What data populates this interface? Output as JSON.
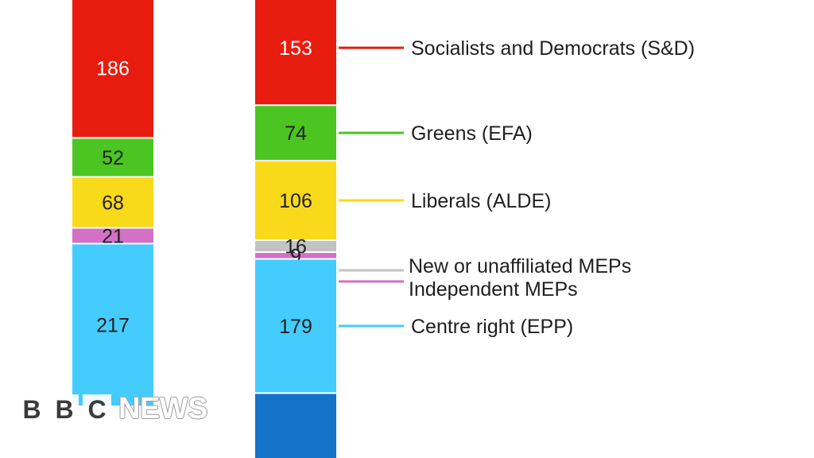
{
  "chart_data": {
    "type": "bar",
    "stacked": true,
    "legend_placement": "right",
    "grid": false,
    "bars": [
      {
        "segments": [
          {
            "value": 186,
            "label": "186",
            "color": "#e81c0e"
          },
          {
            "value": 52,
            "label": "52",
            "color": "#4cc522"
          },
          {
            "value": 68,
            "label": "68",
            "color": "#f9da1b"
          },
          {
            "value": 21,
            "label": "21",
            "color": "#d271c5"
          },
          {
            "value": 217,
            "label": "217",
            "color": "#45ccff"
          }
        ]
      },
      {
        "segments": [
          {
            "value": 153,
            "label": "153",
            "color": "#e81c0e",
            "legend": "Socialists and Democrats (S&D)"
          },
          {
            "value": 74,
            "label": "74",
            "color": "#4cc522",
            "legend": "Greens (EFA)"
          },
          {
            "value": 106,
            "label": "106",
            "color": "#f9da1b",
            "legend": "Liberals (ALDE)"
          },
          {
            "value": 16,
            "label": "16",
            "color": "#c3c3c3",
            "legend": "New or unaffiliated MEPs"
          },
          {
            "value": 9,
            "label": "9",
            "color": "#d271c5",
            "legend": "Independent MEPs"
          },
          {
            "value": 179,
            "label": "179",
            "color": "#45ccff",
            "legend": "Centre right (EPP)"
          },
          {
            "value": null,
            "label": "",
            "color": "#1472c9"
          }
        ]
      }
    ]
  },
  "branding": {
    "logo_letters": [
      "B",
      "B",
      "C"
    ],
    "logo_word": "NEWS"
  }
}
